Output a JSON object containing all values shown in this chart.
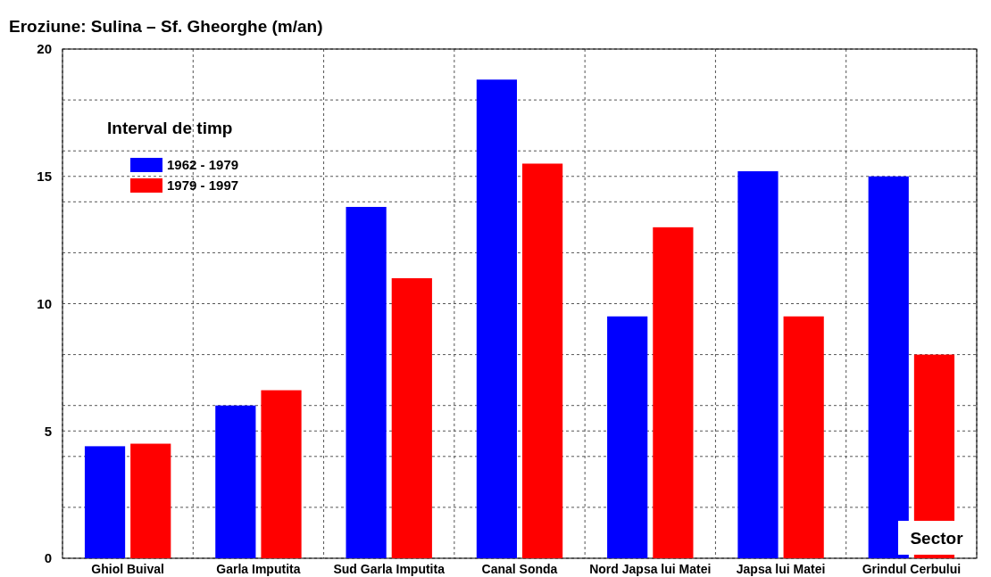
{
  "chart_data": {
    "type": "bar",
    "title": "Eroziune:  Sulina – Sf. Gheorghe (m/an)",
    "xlabel": "Sector",
    "legend_title": "Interval de timp",
    "legend": "top left",
    "grid": true,
    "categories": [
      "Ghiol Buival",
      "Garla Imputita",
      "Sud Garla Imputita",
      "Canal Sonda",
      "Nord Japsa lui Matei",
      "Japsa lui Matei",
      "Grindul Cerbului"
    ],
    "series": [
      {
        "name": "1962 - 1979",
        "color": "#0000ff",
        "values": [
          4.4,
          6,
          13.8,
          18.8,
          9.5,
          15.2,
          15
        ]
      },
      {
        "name": "1979 - 1997",
        "color": "#ff0000",
        "values": [
          4.5,
          6.6,
          11,
          15.5,
          13,
          9.5,
          8
        ]
      }
    ],
    "ylim": [
      0,
      20
    ],
    "yticks": [
      {
        "value": 0,
        "label": "0"
      },
      {
        "value": 2,
        "label": null
      },
      {
        "value": 4,
        "label": null
      },
      {
        "value": 5,
        "label": "5"
      },
      {
        "value": 6,
        "label": null
      },
      {
        "value": 8,
        "label": null
      },
      {
        "value": 10,
        "label": "10"
      },
      {
        "value": 12,
        "label": null
      },
      {
        "value": 14,
        "label": null
      },
      {
        "value": 15,
        "label": "15"
      },
      {
        "value": 16,
        "label": null
      },
      {
        "value": 18,
        "label": null
      },
      {
        "value": 20,
        "label": "20"
      }
    ]
  }
}
